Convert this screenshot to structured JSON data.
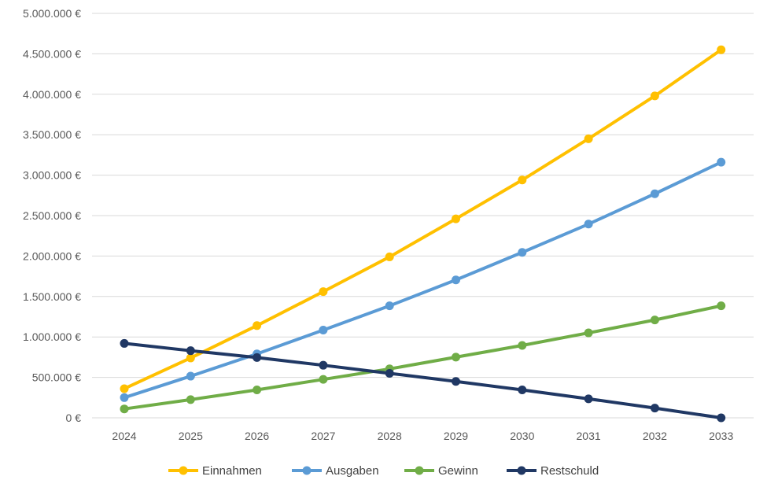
{
  "chart_data": {
    "type": "line",
    "title": "",
    "xlabel": "",
    "ylabel": "",
    "categories": [
      "2024",
      "2025",
      "2026",
      "2027",
      "2028",
      "2029",
      "2030",
      "2031",
      "2032",
      "2033"
    ],
    "ylim": [
      0,
      5000000
    ],
    "yticks": [
      0,
      500000,
      1000000,
      1500000,
      2000000,
      2500000,
      3000000,
      3500000,
      4000000,
      4500000,
      5000000
    ],
    "ytick_labels": [
      "0 €",
      "500.000 €",
      "1.000.000 €",
      "1.500.000 €",
      "2.000.000 €",
      "2.500.000 €",
      "3.000.000 €",
      "3.500.000 €",
      "4.000.000 €",
      "4.500.000 €",
      "5.000.000 €"
    ],
    "grid": true,
    "legend_position": "bottom",
    "series": [
      {
        "name": "Einnahmen",
        "color": "#FFC000",
        "values": [
          360000,
          740000,
          1140000,
          1560000,
          1990000,
          2460000,
          2940000,
          3450000,
          3980000,
          4550000
        ]
      },
      {
        "name": "Ausgaben",
        "color": "#5B9BD5",
        "values": [
          250000,
          515000,
          790000,
          1085000,
          1385000,
          1705000,
          2045000,
          2395000,
          2770000,
          3160000
        ]
      },
      {
        "name": "Gewinn",
        "color": "#70AD47",
        "values": [
          110000,
          225000,
          345000,
          475000,
          605000,
          750000,
          895000,
          1050000,
          1210000,
          1385000
        ]
      },
      {
        "name": "Restschuld",
        "color": "#203864",
        "values": [
          920000,
          830000,
          745000,
          650000,
          550000,
          450000,
          345000,
          235000,
          120000,
          0
        ]
      }
    ]
  }
}
